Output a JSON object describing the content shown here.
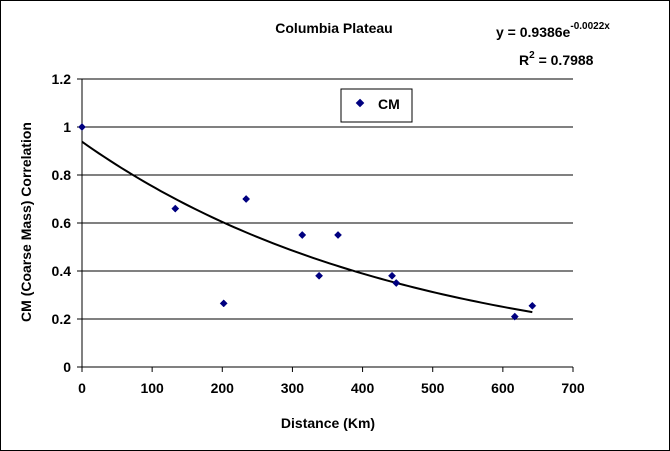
{
  "chart_data": {
    "type": "scatter",
    "title": "Columbia Plateau",
    "xlabel": "Distance (Km)",
    "ylabel": "CM (Coarse Mass) Correlation",
    "xlim": [
      0,
      700
    ],
    "ylim": [
      0,
      1.2
    ],
    "x_ticks": [
      "0",
      "100",
      "200",
      "300",
      "400",
      "500",
      "600",
      "700"
    ],
    "y_ticks": [
      "0",
      "0.2",
      "0.4",
      "0.6",
      "0.8",
      "1",
      "1.2"
    ],
    "grid": "horizontal",
    "legend_position": "top-center",
    "series": [
      {
        "name": "CM",
        "color": "#000080",
        "marker": "diamond",
        "points": [
          {
            "x": 0,
            "y": 1.0
          },
          {
            "x": 133,
            "y": 0.66
          },
          {
            "x": 202,
            "y": 0.265
          },
          {
            "x": 234,
            "y": 0.7
          },
          {
            "x": 314,
            "y": 0.55
          },
          {
            "x": 338,
            "y": 0.38
          },
          {
            "x": 365,
            "y": 0.55
          },
          {
            "x": 442,
            "y": 0.38
          },
          {
            "x": 448,
            "y": 0.35
          },
          {
            "x": 617,
            "y": 0.21
          },
          {
            "x": 642,
            "y": 0.255
          }
        ]
      }
    ],
    "trendline": {
      "type": "exponential",
      "a": 0.9386,
      "b": -0.0022,
      "x_range": [
        0,
        642
      ],
      "equation": {
        "base": "y = 0.9386e",
        "exponent": "-0.0022x"
      },
      "r_squared": {
        "base": "R",
        "exponent": "2",
        "rest": " = 0.7988"
      }
    }
  }
}
